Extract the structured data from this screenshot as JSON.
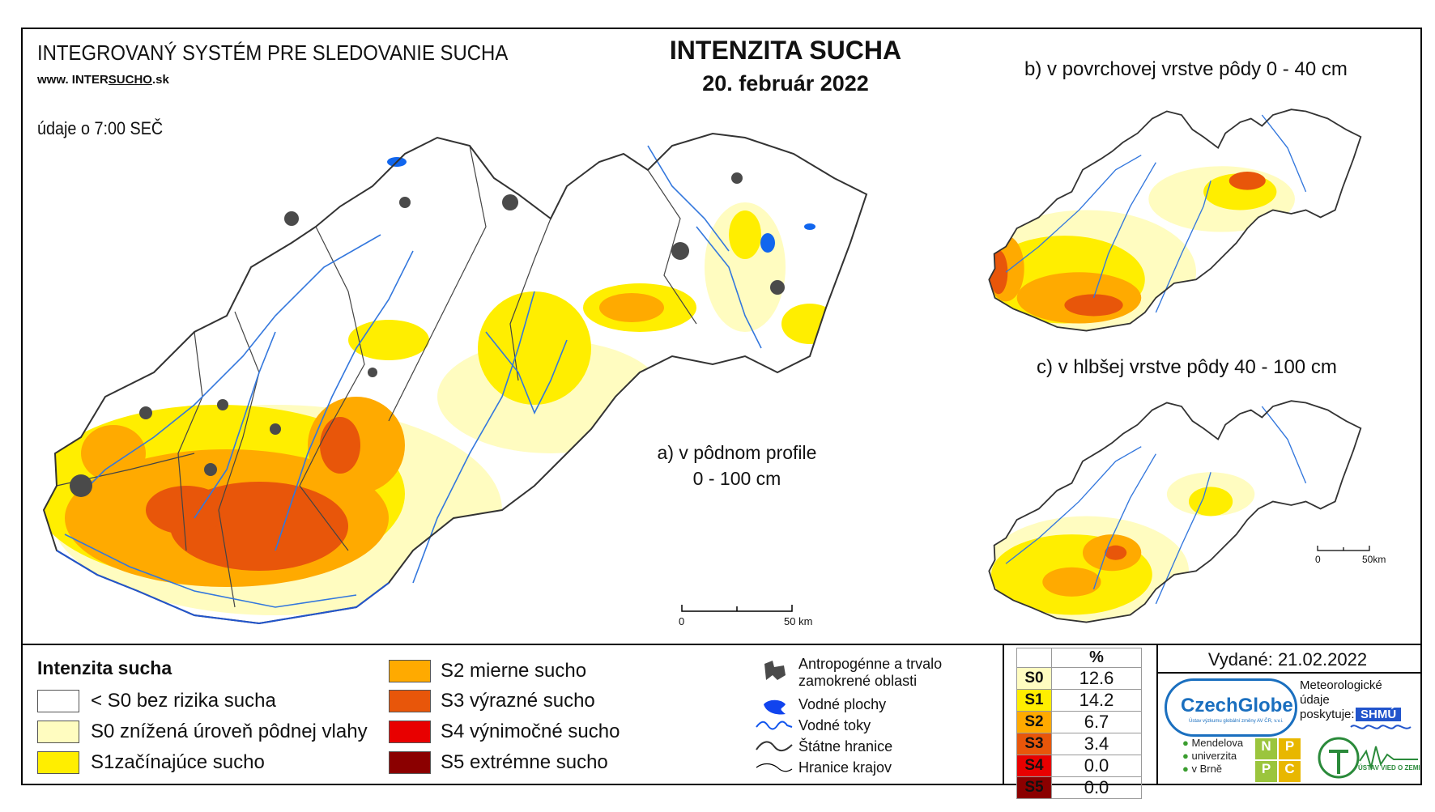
{
  "header": {
    "system": "INTEGROVANÝ SYSTÉM PRE SLEDOVANIE SUCHA",
    "url_pre": "www. INTER",
    "url_mid": "SUCHO",
    "url_post": ".sk",
    "time": "údaje o 7:00 SEČ"
  },
  "title": "INTENZITA SUCHA",
  "date": "20. február 2022",
  "maps": {
    "a_line1": "a) v pôdnom profile",
    "a_line2": "0 - 100 cm",
    "b": "b) v povrchovej vrstve pôdy 0 - 40 cm",
    "c": "c) v hlbšej vrstve pôdy 40 - 100 cm",
    "scale_main_0": "0",
    "scale_main_50": "50 km",
    "scale_small_0": "0",
    "scale_small_50": "50km"
  },
  "legend": {
    "title": "Intenzita sucha",
    "items": [
      {
        "label": "< S0 bez rizika sucha",
        "color": "#ffffff"
      },
      {
        "label": "S0 znížená úroveň pôdnej vlahy",
        "color": "#fffcc0"
      },
      {
        "label": "S1začínajúce sucho",
        "color": "#ffee00"
      },
      {
        "label": "S2 mierne sucho",
        "color": "#ffaa00"
      },
      {
        "label": "S3 výrazné sucho",
        "color": "#e8560a"
      },
      {
        "label": "S4 výnimočné sucho",
        "color": "#e80000"
      },
      {
        "label": "S5 extrémne sucho",
        "color": "#8b0000"
      }
    ]
  },
  "symbols": {
    "urban": "Antropogénne a trvalo zamokrené oblasti",
    "urban_l1": "Antropogénne a trvalo",
    "urban_l2": "zamokrené oblasti",
    "water_bodies": "Vodné plochy",
    "rivers": "Vodné toky",
    "state_border": "Štátne hranice",
    "region_border": "Hranice krajov"
  },
  "stats": {
    "header": "%",
    "rows": [
      {
        "cls": "S0",
        "value": "12.6",
        "color": "#fffcc0"
      },
      {
        "cls": "S1",
        "value": "14.2",
        "color": "#ffee00"
      },
      {
        "cls": "S2",
        "value": "6.7",
        "color": "#ffaa00"
      },
      {
        "cls": "S3",
        "value": "3.4",
        "color": "#e8560a"
      },
      {
        "cls": "S4",
        "value": "0.0",
        "color": "#e80000"
      },
      {
        "cls": "S5",
        "value": "0.0",
        "color": "#8b0000"
      }
    ]
  },
  "issued": "Vydané: 21.02.2022",
  "logos": {
    "czechglobe": "CzechGlobe",
    "czechglobe_sub": "Ústav výzkumu globální změny AV ČR, v.v.i.",
    "meteo_l1": "Meteorologické",
    "meteo_l2": "údaje",
    "meteo_l3": "poskytuje:",
    "shmu": "SHMÚ",
    "mendel_l1": "Mendelova",
    "mendel_l2": "univerzita",
    "mendel_l3": "v Brně",
    "npc": [
      "N",
      "P",
      "P",
      "C"
    ],
    "uvz": "ÚSTAV VIED O ZEMI"
  }
}
